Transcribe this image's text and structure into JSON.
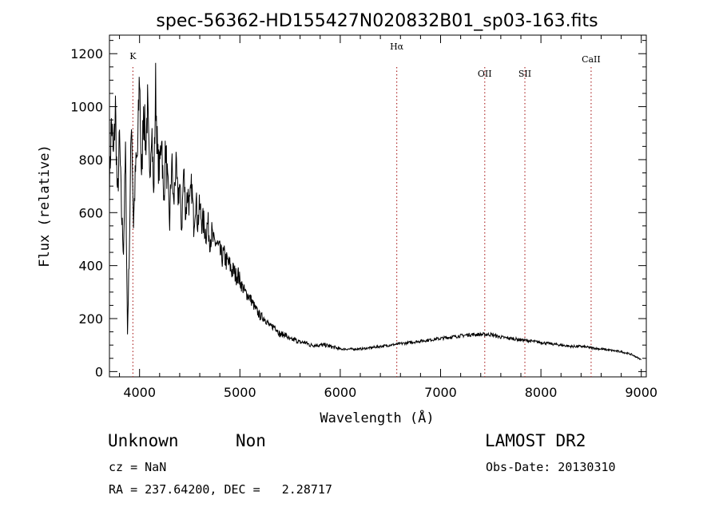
{
  "chart_data": {
    "type": "line",
    "title": "spec-56362-HD155427N020832B01_sp03-163.fits",
    "xlabel": "Wavelength (Å)",
    "ylabel": "Flux (relative)",
    "xlim": [
      3700,
      9050
    ],
    "ylim": [
      -20,
      1270
    ],
    "xticks": [
      4000,
      5000,
      6000,
      7000,
      8000,
      9000
    ],
    "yticks": [
      0,
      200,
      400,
      600,
      800,
      1000,
      1200
    ],
    "grid": false,
    "series": [
      {
        "x": [
          3700,
          3720,
          3740,
          3760,
          3780,
          3800,
          3820,
          3840,
          3860,
          3880,
          3900,
          3920,
          3940,
          3960,
          3980,
          4000,
          4020,
          4040,
          4060,
          4080,
          4100,
          4120,
          4140,
          4160,
          4180,
          4200,
          4220,
          4240,
          4260,
          4280,
          4300,
          4320,
          4340,
          4360,
          4380,
          4400,
          4420,
          4440,
          4460,
          4480,
          4500,
          4520,
          4540,
          4560,
          4580,
          4600,
          4620,
          4640,
          4660,
          4680,
          4700,
          4720,
          4740,
          4760,
          4780,
          4800,
          4820,
          4840,
          4860,
          4880,
          4900,
          4920,
          4940,
          4960,
          4980,
          5000,
          5050,
          5100,
          5150,
          5200,
          5250,
          5300,
          5350,
          5400,
          5450,
          5500,
          5550,
          5600,
          5650,
          5700,
          5750,
          5800,
          5850,
          5900,
          5950,
          6000,
          6100,
          6200,
          6300,
          6400,
          6500,
          6600,
          6700,
          6800,
          6900,
          7000,
          7100,
          7200,
          7300,
          7400,
          7500,
          7600,
          7700,
          7800,
          7900,
          8000,
          8100,
          8200,
          8300,
          8400,
          8500,
          8600,
          8700,
          8800,
          8900,
          9000
        ],
        "y": [
          700,
          950,
          800,
          1000,
          640,
          880,
          600,
          460,
          830,
          140,
          500,
          980,
          560,
          760,
          820,
          1130,
          700,
          1020,
          850,
          1000,
          720,
          960,
          650,
          1080,
          800,
          760,
          920,
          620,
          850,
          700,
          560,
          800,
          620,
          780,
          660,
          700,
          540,
          760,
          600,
          680,
          620,
          700,
          560,
          660,
          560,
          620,
          570,
          560,
          520,
          560,
          500,
          520,
          480,
          490,
          470,
          450,
          430,
          440,
          420,
          410,
          400,
          380,
          380,
          360,
          370,
          340,
          300,
          280,
          240,
          210,
          200,
          170,
          170,
          140,
          140,
          120,
          120,
          110,
          110,
          100,
          100,
          100,
          100,
          95,
          90,
          85,
          85,
          85,
          90,
          95,
          100,
          105,
          110,
          115,
          120,
          125,
          130,
          135,
          140,
          140,
          140,
          130,
          125,
          120,
          115,
          110,
          105,
          100,
          95,
          95,
          90,
          85,
          80,
          75,
          65,
          45
        ]
      }
    ],
    "line_markers": [
      {
        "name": "K",
        "x": 3934
      },
      {
        "name": "Hα",
        "x": 6563
      },
      {
        "name": "OII",
        "x": 7440
      },
      {
        "name": "SII",
        "x": 7840
      },
      {
        "name": "CaII",
        "x": 8500
      }
    ]
  },
  "info": {
    "class": "Unknown",
    "subclass": "Non",
    "survey": "LAMOST DR2",
    "cz": "cz = NaN",
    "obs_date": "Obs-Date: 20130310",
    "coords": "RA = 237.64200, DEC =   2.28717"
  }
}
